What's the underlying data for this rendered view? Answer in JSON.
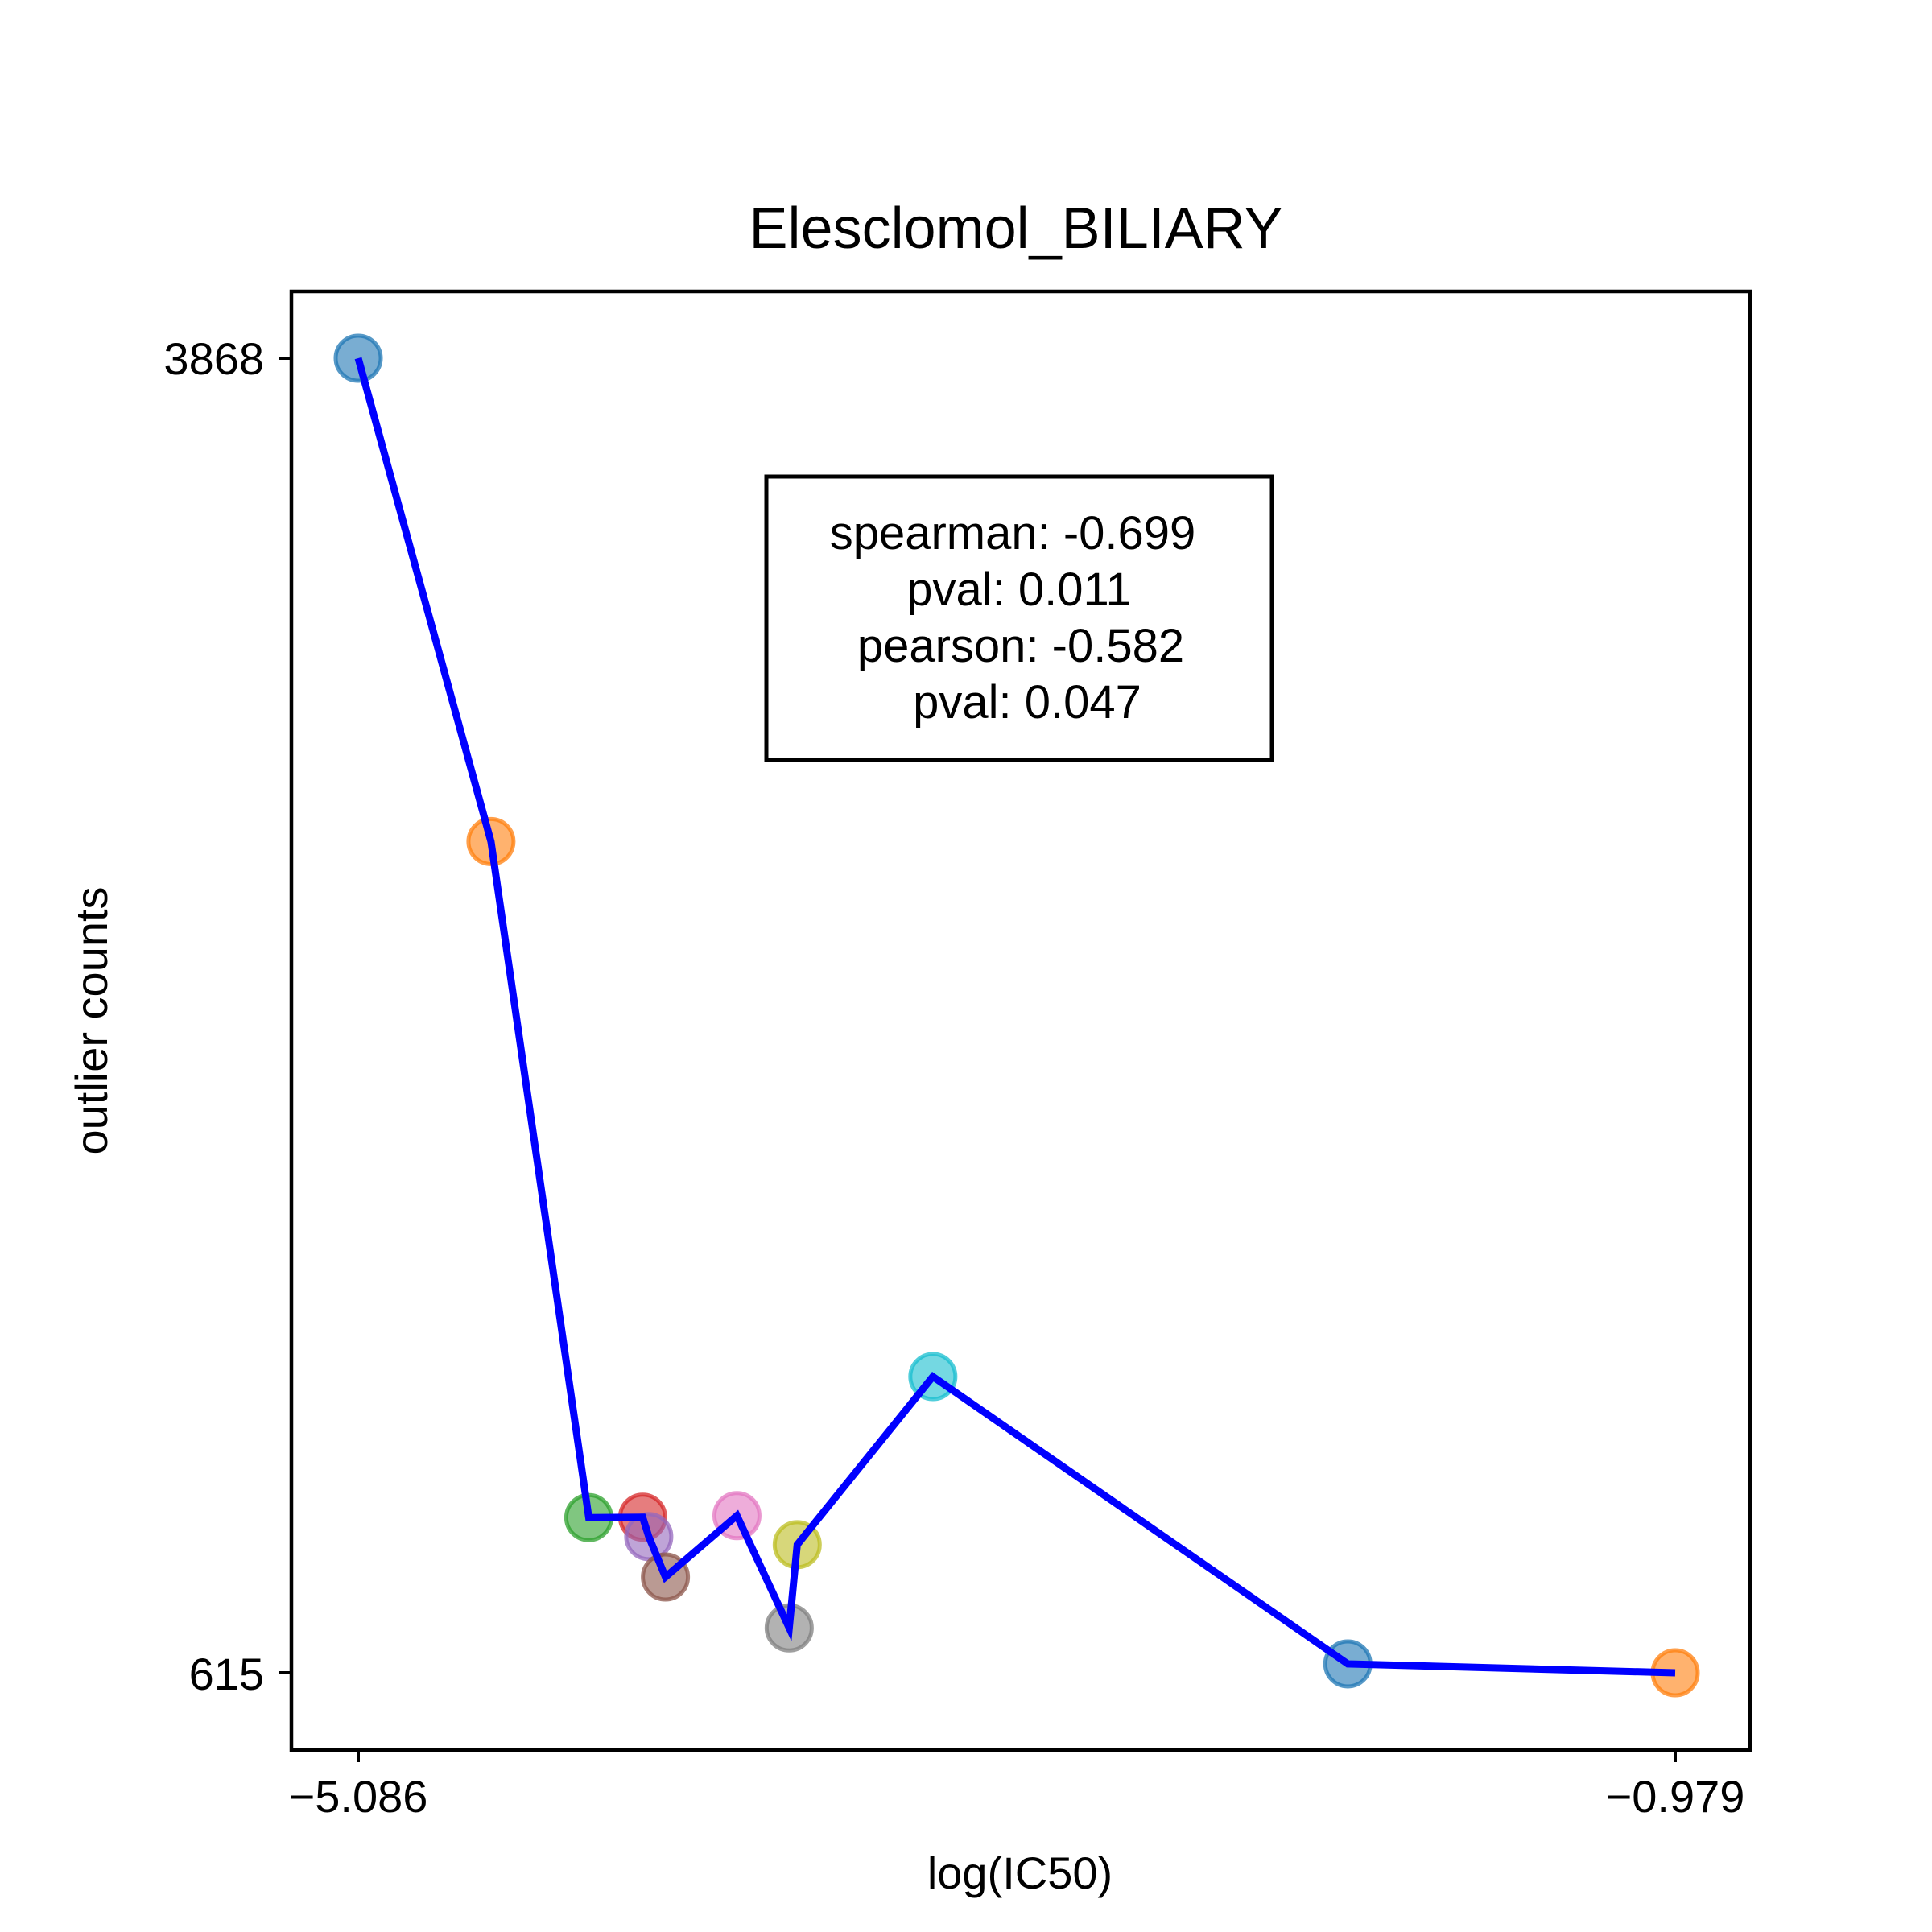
{
  "chart_data": {
    "type": "scatter",
    "title": "Elesclomol_BILIARY",
    "xlabel": "log(IC50)",
    "ylabel": "outlier counts",
    "xlim": [
      -5.086,
      -0.979
    ],
    "ylim": [
      615,
      3868
    ],
    "x_ticks": [
      "−5.086",
      "−0.979"
    ],
    "y_ticks": [
      "3868",
      "615"
    ],
    "grid": false,
    "line_color": "#0000ff",
    "points": [
      {
        "x": -5.086,
        "y": 3868,
        "color": "#1f77b4"
      },
      {
        "x": -4.672,
        "y": 2672,
        "color": "#ff7f0e"
      },
      {
        "x": -4.367,
        "y": 999,
        "color": "#2ca02c"
      },
      {
        "x": -4.199,
        "y": 1000,
        "color": "#d62728"
      },
      {
        "x": -4.18,
        "y": 952,
        "color": "#9467bd"
      },
      {
        "x": -4.128,
        "y": 852,
        "color": "#8c564b"
      },
      {
        "x": -3.905,
        "y": 1004,
        "color": "#e377c2"
      },
      {
        "x": -3.742,
        "y": 726,
        "color": "#7f7f7f"
      },
      {
        "x": -3.717,
        "y": 932,
        "color": "#bcbd22"
      },
      {
        "x": -3.294,
        "y": 1348,
        "color": "#17becf"
      },
      {
        "x": -2.0,
        "y": 637,
        "color": "#1f77b4"
      },
      {
        "x": -0.979,
        "y": 615,
        "color": "#ff7f0e"
      }
    ]
  },
  "stats_box": {
    "line1": "spearman: -0.699",
    "line2": "pval: 0.011",
    "line3": "pearson: -0.582",
    "line4": "pval: 0.047"
  }
}
